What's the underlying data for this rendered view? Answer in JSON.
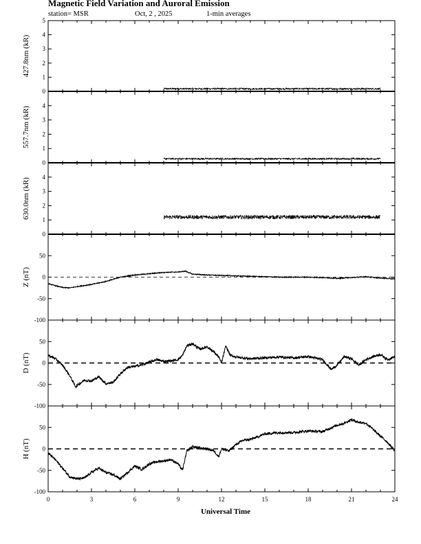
{
  "header": {
    "title": "Magnetic Field Variation and Auroral Emission",
    "station": "station= MSR",
    "date": "Oct, 2  , 2025",
    "averaging": "1-min averages"
  },
  "chart_data": [
    {
      "type": "line",
      "ylabel": "427.8nm (kR)",
      "ylim": [
        0,
        5
      ],
      "yticks": [
        "0",
        "1",
        "2",
        "3",
        "4",
        "5"
      ],
      "xlim": [
        0,
        24
      ],
      "x": [
        8.0,
        23.0
      ],
      "y": [
        0.18,
        0.18
      ],
      "noise": 0.06
    },
    {
      "type": "line",
      "ylabel": "557.7nm (kR)",
      "ylim": [
        0,
        5
      ],
      "yticks": [
        "0",
        "1",
        "2",
        "3",
        "4"
      ],
      "xlim": [
        0,
        24
      ],
      "x": [
        8.0,
        23.0
      ],
      "y": [
        0.28,
        0.28
      ],
      "noise": 0.06
    },
    {
      "type": "line",
      "ylabel": "630.0nm (kR)",
      "ylim": [
        0,
        5
      ],
      "yticks": [
        "0",
        "1",
        "2",
        "3",
        "4"
      ],
      "xlim": [
        0,
        24
      ],
      "x": [
        8.0,
        23.0
      ],
      "y": [
        1.2,
        1.2
      ],
      "noise": 0.14
    },
    {
      "type": "line",
      "ylabel": "Z (nT)",
      "ylim": [
        -100,
        100
      ],
      "yticks": [
        "-100",
        "-50",
        "0",
        "50"
      ],
      "xlim": [
        0,
        24
      ],
      "zero_line": "thin-dashed",
      "x": [
        0,
        0.5,
        1.0,
        1.5,
        2.0,
        3.0,
        4.0,
        5.0,
        6.0,
        7.0,
        8.0,
        9.0,
        9.5,
        10.0,
        11.0,
        12.0,
        13.0,
        14.0,
        15.0,
        16.0,
        17.0,
        18.0,
        19.0,
        20.0,
        21.0,
        22.0,
        23.0,
        24.0
      ],
      "y": [
        -15,
        -20,
        -24,
        -25,
        -22,
        -17,
        -10,
        0,
        5,
        8,
        11,
        12,
        14,
        7,
        5,
        4,
        3,
        2,
        1,
        0,
        0,
        0,
        -1,
        -3,
        -1,
        1,
        -2,
        -4
      ],
      "noise": 1
    },
    {
      "type": "line",
      "ylabel": "D (nT)",
      "ylim": [
        -100,
        100
      ],
      "yticks": [
        "-100",
        "-50",
        "0",
        "50"
      ],
      "xlim": [
        0,
        24
      ],
      "zero_line": "thick-dashed",
      "x": [
        0,
        0.5,
        1.0,
        1.5,
        1.9,
        2.5,
        3.0,
        3.5,
        4.0,
        4.5,
        5.0,
        5.5,
        6.0,
        6.5,
        7.0,
        7.5,
        8.0,
        8.5,
        9.0,
        9.3,
        9.6,
        10.0,
        10.5,
        11.0,
        11.5,
        11.8,
        12.0,
        12.3,
        12.6,
        13.0,
        14.0,
        15.0,
        16.0,
        17.0,
        18.0,
        19.0,
        19.6,
        20.0,
        20.5,
        21.0,
        21.5,
        22.0,
        22.5,
        23.0,
        23.5,
        24.0
      ],
      "y": [
        18,
        10,
        -5,
        -30,
        -55,
        -40,
        -42,
        -32,
        -48,
        -45,
        -25,
        -10,
        -8,
        -4,
        2,
        8,
        4,
        5,
        8,
        18,
        40,
        45,
        32,
        38,
        25,
        14,
        0,
        40,
        18,
        14,
        10,
        12,
        14,
        12,
        15,
        8,
        -15,
        -5,
        15,
        10,
        -5,
        8,
        15,
        20,
        8,
        15
      ],
      "noise": 3
    },
    {
      "type": "line",
      "ylabel": "H (nT)",
      "ylim": [
        -100,
        100
      ],
      "yticks": [
        "-100",
        "-50",
        "0",
        "50"
      ],
      "xlim": [
        0,
        24
      ],
      "zero_line": "thick-dashed",
      "x": [
        0,
        0.5,
        1.0,
        1.5,
        2.0,
        2.5,
        3.0,
        3.5,
        4.0,
        4.5,
        5.0,
        5.5,
        6.0,
        6.5,
        7.0,
        7.5,
        8.0,
        8.5,
        9.0,
        9.3,
        9.6,
        10.0,
        10.5,
        11.0,
        11.5,
        11.8,
        12.0,
        12.5,
        13.0,
        13.5,
        14.0,
        14.5,
        15.0,
        16.0,
        17.0,
        18.0,
        19.0,
        19.5,
        20.0,
        20.5,
        21.0,
        21.5,
        22.0,
        22.5,
        23.0,
        23.5,
        24.0
      ],
      "y": [
        -10,
        -25,
        -45,
        -65,
        -70,
        -68,
        -55,
        -45,
        -55,
        -60,
        -70,
        -55,
        -40,
        -48,
        -35,
        -30,
        -28,
        -25,
        -35,
        -50,
        -5,
        5,
        2,
        0,
        -5,
        -18,
        0,
        -5,
        10,
        20,
        22,
        28,
        35,
        38,
        38,
        42,
        40,
        48,
        55,
        60,
        68,
        62,
        60,
        45,
        30,
        15,
        -5
      ],
      "noise": 3
    }
  ],
  "x_axis": {
    "label": "Universal Time",
    "ticks": [
      "0",
      "3",
      "6",
      "9",
      "12",
      "15",
      "18",
      "21",
      "24"
    ]
  },
  "colors": {
    "line": "#000000",
    "background": "#ffffff"
  }
}
